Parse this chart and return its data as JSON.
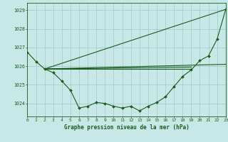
{
  "bg_color": "#c8e8e8",
  "grid_color": "#a0c8c8",
  "line_color": "#1a5c1a",
  "title": "Graphe pression niveau de la mer (hPa)",
  "xlim": [
    0,
    23
  ],
  "ylim": [
    1023.3,
    1029.4
  ],
  "yticks": [
    1024,
    1025,
    1026,
    1027,
    1028,
    1029
  ],
  "xticks": [
    0,
    1,
    2,
    3,
    4,
    5,
    6,
    7,
    8,
    9,
    10,
    11,
    12,
    13,
    14,
    15,
    16,
    17,
    18,
    19,
    20,
    21,
    22,
    23
  ],
  "main_series": {
    "x": [
      0,
      1,
      2,
      3,
      4,
      5,
      6,
      7,
      8,
      9,
      10,
      11,
      12,
      13,
      14,
      15,
      16,
      17,
      18,
      19,
      20,
      21,
      22,
      23
    ],
    "y": [
      1026.75,
      1026.25,
      1025.85,
      1025.65,
      1025.2,
      1024.7,
      1023.75,
      1023.85,
      1024.05,
      1024.0,
      1023.85,
      1023.75,
      1023.85,
      1023.6,
      1023.85,
      1024.05,
      1024.35,
      1024.9,
      1025.45,
      1025.8,
      1026.3,
      1026.55,
      1027.45,
      1029.05
    ]
  },
  "straight_lines": [
    {
      "x": [
        2,
        19
      ],
      "y": [
        1025.85,
        1025.85
      ]
    },
    {
      "x": [
        2,
        19
      ],
      "y": [
        1025.85,
        1025.95
      ]
    },
    {
      "x": [
        2,
        23
      ],
      "y": [
        1025.85,
        1026.1
      ]
    },
    {
      "x": [
        2,
        23
      ],
      "y": [
        1025.85,
        1029.05
      ]
    }
  ]
}
